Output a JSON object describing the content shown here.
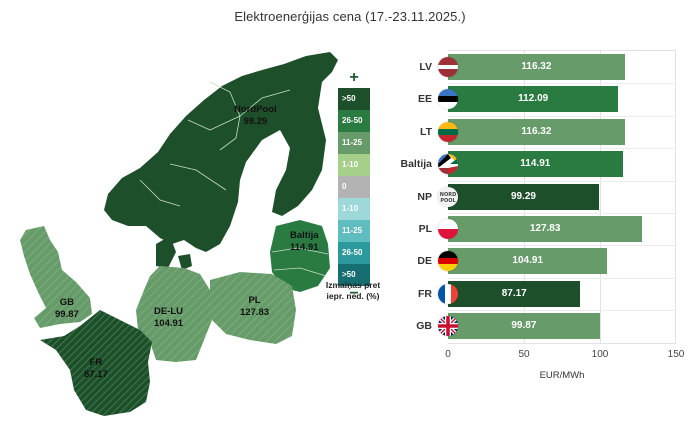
{
  "title": "Elektroenerģijas cena (17.-23.11.2025.)",
  "map": {
    "regions": [
      {
        "id": "nordpool",
        "label": "NordPool",
        "value": "99.29",
        "color": "#1e4f2b",
        "hatched": false
      },
      {
        "id": "baltija",
        "label": "Baltija",
        "value": "114.91",
        "color": "#2a7b42",
        "hatched": false
      },
      {
        "id": "gb",
        "label": "GB",
        "value": "99.87",
        "color": "#679c6a",
        "hatched": true
      },
      {
        "id": "de-lu",
        "label": "DE-LU",
        "value": "104.91",
        "color": "#679c6a",
        "hatched": true
      },
      {
        "id": "pl",
        "label": "PL",
        "value": "127.83",
        "color": "#679c6a",
        "hatched": true
      },
      {
        "id": "fr",
        "label": "FR",
        "value": "87.17",
        "color": "#1e4f2b",
        "hatched": true
      }
    ]
  },
  "legend": {
    "plus_symbol": "+",
    "minus_symbol": "−",
    "caption": "Izmaiņas pret iepr. ned. (%)",
    "items": [
      {
        "label": ">50",
        "color": "#1e4f2b"
      },
      {
        "label": "26-50",
        "color": "#2a7b42"
      },
      {
        "label": "11-25",
        "color": "#679c6a"
      },
      {
        "label": "1-10",
        "color": "#a6d08a"
      },
      {
        "label": "0",
        "color": "#b3b3b3"
      },
      {
        "label": "1-10",
        "color": "#9fd8d8"
      },
      {
        "label": "11-25",
        "color": "#5fbcbf"
      },
      {
        "label": "26-50",
        "color": "#2c9a9c"
      },
      {
        "label": ">50",
        "color": "#166e70"
      }
    ]
  },
  "chart_data": {
    "type": "bar",
    "orientation": "horizontal",
    "title": "Elektroenerģijas cena (17.-23.11.2025.)",
    "xlabel": "EUR/MWh",
    "ylabel": "",
    "xlim": [
      0,
      150
    ],
    "xticks": [
      "0",
      "50",
      "100",
      "150"
    ],
    "grid": true,
    "categories": [
      "LV",
      "EE",
      "LT",
      "Baltija",
      "NP",
      "PL",
      "DE",
      "FR",
      "GB"
    ],
    "values": [
      116.32,
      112.09,
      116.32,
      114.91,
      99.29,
      127.83,
      104.91,
      87.17,
      99.87
    ],
    "value_labels": [
      "116.32",
      "112.09",
      "116.32",
      "114.91",
      "99.29",
      "127.83",
      "104.91",
      "87.17",
      "99.87"
    ],
    "bar_colors": [
      "#679c6a",
      "#2a7b42",
      "#679c6a",
      "#2a7b42",
      "#1e4f2b",
      "#679c6a",
      "#679c6a",
      "#1e4f2b",
      "#679c6a"
    ],
    "flags": [
      "latvia-flag",
      "estonia-flag",
      "lithuania-flag",
      "baltic-flag",
      "nordpool-logo",
      "poland-flag",
      "germany-flag",
      "france-flag",
      "uk-flag"
    ]
  }
}
